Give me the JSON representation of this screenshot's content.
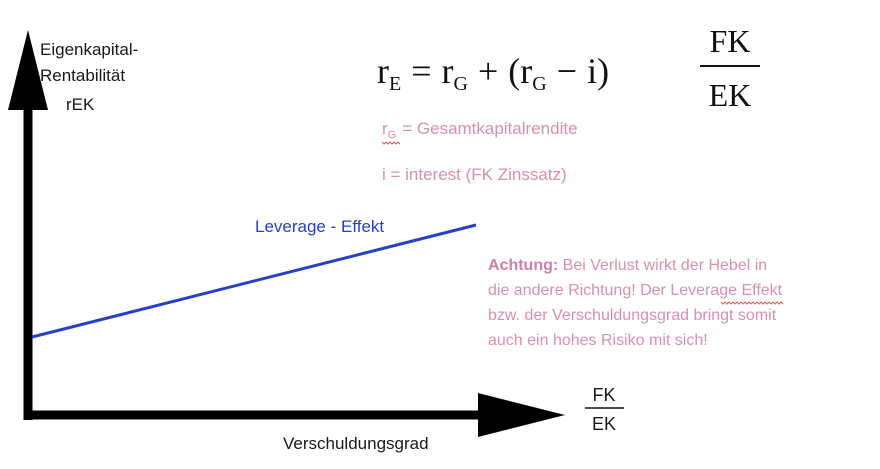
{
  "y_axis": {
    "label_lines": [
      "Eigenkapital-",
      "Rentabilität",
      "rEK"
    ]
  },
  "x_axis": {
    "label": "Verschuldungsgrad",
    "fraction_numerator": "FK",
    "fraction_denominator": "EK"
  },
  "line": {
    "label": "Leverage - Effekt",
    "color": "#2840c8"
  },
  "formula": {
    "lhs_base": "r",
    "lhs_sub": "E",
    "equals": "=",
    "t1_base": "r",
    "t1_sub": "G",
    "plus": "+",
    "open_paren": "(",
    "t2_base": "r",
    "t2_sub": "G",
    "minus": "−",
    "interest": "i",
    "close_paren": ")",
    "frac_num": "FK",
    "frac_den": "EK"
  },
  "legend": {
    "rg_base": "r",
    "rg_sub": "G",
    "rg_text": "= Gesamtkapitalrendite",
    "i_text": "i = interest (FK Zinssatz)"
  },
  "note": {
    "bold": "Achtung:",
    "line1_rest": " Bei Verlust wirkt der Hebel in",
    "line2": "die andere Richtung! Der Leverage Effekt",
    "line3": "bzw. der Verschuldungsgrad bringt somit",
    "line4": "auch ein hohes Risiko mit sich!",
    "color": "#d98fb0"
  }
}
